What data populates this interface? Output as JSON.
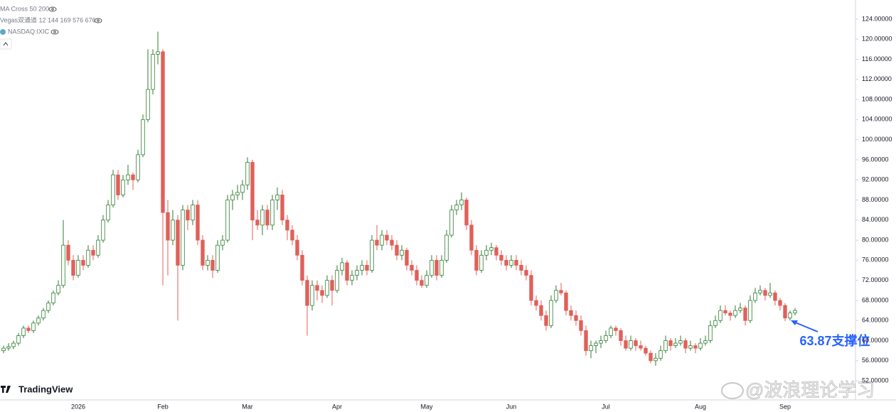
{
  "chart_data": {
    "type": "candlestick",
    "indicators": [
      "MA Cross 50 200",
      "Vegas双通道 12 144 169 576 676",
      "NASDAQ:IXIC"
    ],
    "logo": "TradingView",
    "watermark": "@波浪理论学习",
    "annotation": "63.87支撑位",
    "up_color": "#2e7d32",
    "down_color": "#e0605a",
    "ylim": [
      48.2,
      127.8
    ],
    "yticks": [
      {
        "value": 52,
        "label": "52.00000"
      },
      {
        "value": 56,
        "label": "56.00000"
      },
      {
        "value": 60,
        "label": "60.00000"
      },
      {
        "value": 64,
        "label": "64.00000"
      },
      {
        "value": 68,
        "label": "68.00000"
      },
      {
        "value": 72,
        "label": "72.00000"
      },
      {
        "value": 76,
        "label": "76.00000"
      },
      {
        "value": 80,
        "label": "80.00000"
      },
      {
        "value": 84,
        "label": "84.00000"
      },
      {
        "value": 88,
        "label": "88.00000"
      },
      {
        "value": 92,
        "label": "92.00000"
      },
      {
        "value": 96,
        "label": "96.00000"
      },
      {
        "value": 100,
        "label": "100.00000"
      },
      {
        "value": 104,
        "label": "104.00000"
      },
      {
        "value": 108,
        "label": "108.00000"
      },
      {
        "value": 112,
        "label": "112.00000"
      },
      {
        "value": 116,
        "label": "116.00000"
      },
      {
        "value": 120,
        "label": "120.00000"
      },
      {
        "value": 124,
        "label": "124.00000"
      }
    ],
    "categories": [
      null,
      null,
      null,
      null,
      null,
      null,
      null,
      null,
      null,
      null,
      null,
      null,
      null,
      null,
      null,
      "2026",
      null,
      null,
      null,
      null,
      null,
      null,
      null,
      null,
      null,
      null,
      null,
      null,
      null,
      null,
      null,
      null,
      "Feb",
      null,
      null,
      null,
      null,
      null,
      null,
      null,
      null,
      null,
      null,
      null,
      null,
      null,
      null,
      null,
      null,
      "Mar",
      null,
      null,
      null,
      null,
      null,
      null,
      null,
      null,
      null,
      null,
      null,
      null,
      null,
      null,
      null,
      null,
      null,
      "Apr",
      null,
      null,
      null,
      null,
      null,
      null,
      null,
      null,
      null,
      null,
      null,
      null,
      null,
      null,
      null,
      null,
      null,
      "May",
      null,
      null,
      null,
      null,
      null,
      null,
      null,
      null,
      null,
      null,
      null,
      null,
      null,
      null,
      null,
      null,
      "Jun",
      null,
      null,
      null,
      null,
      null,
      null,
      null,
      null,
      null,
      null,
      null,
      null,
      null,
      null,
      null,
      null,
      null,
      null,
      "Jul",
      null,
      null,
      null,
      null,
      null,
      null,
      null,
      null,
      null,
      null,
      null,
      null,
      null,
      null,
      null,
      null,
      null,
      null,
      "Aug",
      null,
      null,
      null,
      null,
      null,
      null,
      null,
      null,
      null,
      null,
      null,
      null,
      null,
      null,
      null,
      null,
      "Sep",
      null,
      null
    ],
    "candles": [
      [
        58,
        59,
        57.5,
        58.5
      ],
      [
        58.5,
        59.5,
        58,
        58.8
      ],
      [
        58.8,
        60,
        58.3,
        59.5
      ],
      [
        59.5,
        61.5,
        59,
        61
      ],
      [
        61,
        63,
        60.5,
        62.5
      ],
      [
        62.5,
        63,
        61.5,
        62
      ],
      [
        62,
        64,
        61.5,
        63.5
      ],
      [
        63.5,
        65,
        63,
        64.5
      ],
      [
        64.5,
        66.5,
        64,
        66
      ],
      [
        66,
        68,
        65.5,
        67.5
      ],
      [
        67.5,
        70,
        67,
        69.5
      ],
      [
        69.5,
        72,
        69,
        71
      ],
      [
        71,
        84,
        70.5,
        79
      ],
      [
        79,
        80,
        75,
        76
      ],
      [
        76,
        77,
        72,
        73
      ],
      [
        73,
        77,
        72.5,
        76
      ],
      [
        76,
        77,
        74,
        75
      ],
      [
        75,
        79,
        74.5,
        78
      ],
      [
        78,
        79,
        76,
        77
      ],
      [
        77,
        81,
        76.5,
        80
      ],
      [
        80,
        85,
        79.5,
        84
      ],
      [
        84,
        88,
        83.5,
        87
      ],
      [
        87,
        94,
        86.5,
        93
      ],
      [
        93,
        94,
        88,
        89
      ],
      [
        89,
        93,
        88.5,
        92
      ],
      [
        92,
        95,
        91,
        93
      ],
      [
        93,
        93.5,
        90,
        92
      ],
      [
        92,
        98,
        91.5,
        97
      ],
      [
        97,
        105,
        96.5,
        104
      ],
      [
        104,
        118,
        103.5,
        110
      ],
      [
        110,
        118,
        109,
        117
      ],
      [
        117,
        121.5,
        115,
        117.5
      ],
      [
        117.5,
        118,
        71,
        85.5
      ],
      [
        85.5,
        88,
        73,
        80
      ],
      [
        80,
        86,
        79,
        84
      ],
      [
        84,
        85,
        64,
        75
      ],
      [
        75,
        87,
        74,
        86
      ],
      [
        86,
        87,
        82,
        84
      ],
      [
        84,
        88,
        83,
        87
      ],
      [
        87,
        88,
        79,
        80
      ],
      [
        80,
        81,
        74,
        75
      ],
      [
        75,
        77,
        74,
        76
      ],
      [
        76,
        77,
        72.5,
        74
      ],
      [
        74,
        80,
        73.5,
        79
      ],
      [
        79,
        81,
        78,
        80
      ],
      [
        80,
        89,
        79.5,
        88
      ],
      [
        88,
        90,
        86,
        89
      ],
      [
        89,
        91,
        88,
        89.5
      ],
      [
        89.5,
        92,
        88,
        91
      ],
      [
        91,
        96.5,
        90,
        95.5
      ],
      [
        95.5,
        96,
        80,
        84
      ],
      [
        84,
        86,
        82,
        83
      ],
      [
        83,
        87,
        81,
        86
      ],
      [
        86,
        87,
        82,
        83
      ],
      [
        83,
        89,
        82,
        88
      ],
      [
        88,
        90.5,
        86,
        89
      ],
      [
        89,
        90,
        83,
        84
      ],
      [
        84,
        85,
        80,
        82
      ],
      [
        82,
        83,
        79,
        80
      ],
      [
        80,
        81,
        76,
        77
      ],
      [
        77,
        78,
        71,
        72
      ],
      [
        72,
        73,
        61,
        67
      ],
      [
        67,
        72,
        66,
        71
      ],
      [
        71,
        72,
        68,
        70
      ],
      [
        70,
        71,
        67.5,
        69
      ],
      [
        69,
        73,
        68.5,
        72
      ],
      [
        72,
        73,
        67,
        70
      ],
      [
        70,
        75,
        69.5,
        74
      ],
      [
        74,
        76.5,
        73,
        75.5
      ],
      [
        75.5,
        76,
        71,
        72
      ],
      [
        72,
        74,
        71,
        73
      ],
      [
        73,
        75,
        72,
        74
      ],
      [
        74,
        76,
        73,
        75
      ],
      [
        75,
        76,
        73,
        74
      ],
      [
        74,
        81,
        73.5,
        80
      ],
      [
        80,
        83,
        78,
        79
      ],
      [
        79,
        82,
        78,
        81
      ],
      [
        81,
        82,
        79,
        80
      ],
      [
        80,
        81,
        78,
        79
      ],
      [
        79,
        80,
        76,
        77
      ],
      [
        77,
        79,
        76,
        78
      ],
      [
        78,
        78.5,
        74,
        75
      ],
      [
        75,
        76,
        73,
        74
      ],
      [
        74,
        75,
        71,
        72
      ],
      [
        72,
        73,
        70.5,
        71
      ],
      [
        71,
        74,
        70.5,
        73
      ],
      [
        73,
        77,
        72.5,
        76
      ],
      [
        76,
        77,
        72,
        73
      ],
      [
        73,
        77,
        72.5,
        76
      ],
      [
        76,
        82,
        75.5,
        81
      ],
      [
        81,
        87,
        80.5,
        86
      ],
      [
        86,
        88,
        85,
        87
      ],
      [
        87,
        89.5,
        86,
        88
      ],
      [
        88,
        88.5,
        82,
        83
      ],
      [
        83,
        84,
        77,
        78
      ],
      [
        78,
        79,
        73,
        74
      ],
      [
        74,
        78,
        73.5,
        77
      ],
      [
        77,
        79,
        76,
        78
      ],
      [
        78,
        79.5,
        77,
        78.5
      ],
      [
        78.5,
        79,
        76,
        77
      ],
      [
        77,
        78,
        75,
        76
      ],
      [
        76,
        77,
        74,
        75
      ],
      [
        75,
        77,
        74.5,
        76
      ],
      [
        76,
        77,
        74,
        75
      ],
      [
        75,
        76,
        73,
        74
      ],
      [
        74,
        75,
        72,
        73
      ],
      [
        73,
        74,
        67,
        68
      ],
      [
        68,
        69,
        66,
        67
      ],
      [
        67,
        68,
        64,
        65
      ],
      [
        65,
        66,
        62,
        63
      ],
      [
        63,
        69,
        62.5,
        68
      ],
      [
        68,
        71,
        67.5,
        70
      ],
      [
        70,
        71.5,
        69,
        69.5
      ],
      [
        69.5,
        70,
        65,
        66
      ],
      [
        66,
        67,
        64,
        65
      ],
      [
        65,
        66,
        63,
        64
      ],
      [
        64,
        65,
        61,
        62
      ],
      [
        62,
        63,
        57,
        58
      ],
      [
        58,
        60,
        56.5,
        59
      ],
      [
        59,
        60,
        57.5,
        59.5
      ],
      [
        59.5,
        61,
        58.5,
        60
      ],
      [
        60,
        62,
        59.5,
        61
      ],
      [
        61,
        63,
        60.5,
        62.5
      ],
      [
        62.5,
        63,
        61,
        62
      ],
      [
        62,
        62.5,
        59,
        60
      ],
      [
        60,
        61,
        58,
        58.5
      ],
      [
        58.5,
        61,
        58,
        60
      ],
      [
        60,
        60.5,
        58,
        59
      ],
      [
        59,
        60,
        58,
        58.5
      ],
      [
        58.5,
        59,
        57,
        57.5
      ],
      [
        57.5,
        58,
        55.5,
        56
      ],
      [
        56,
        57.5,
        55,
        56.5
      ],
      [
        56.5,
        59,
        56,
        58
      ],
      [
        58,
        61,
        57.5,
        60
      ],
      [
        60,
        60.5,
        58,
        59
      ],
      [
        59,
        60.5,
        58.5,
        59.5
      ],
      [
        59.5,
        61,
        59,
        60
      ],
      [
        60,
        60.5,
        57.5,
        58.5
      ],
      [
        58.5,
        60,
        58,
        59
      ],
      [
        59,
        59.5,
        57.5,
        58.5
      ],
      [
        58.5,
        60.5,
        58,
        59.5
      ],
      [
        59.5,
        61,
        59,
        60
      ],
      [
        60,
        64,
        59.5,
        63
      ],
      [
        63,
        65,
        62.5,
        64
      ],
      [
        64,
        67,
        63.5,
        66
      ],
      [
        66,
        67,
        65,
        65.5
      ],
      [
        65.5,
        66,
        64,
        65
      ],
      [
        65,
        67,
        64.5,
        66
      ],
      [
        66,
        67.5,
        65.5,
        66.5
      ],
      [
        66.5,
        67,
        63,
        64
      ],
      [
        64,
        69,
        63.5,
        68
      ],
      [
        68,
        70.5,
        67.5,
        69.5
      ],
      [
        69.5,
        71,
        69,
        70
      ],
      [
        70,
        70.5,
        68,
        69
      ],
      [
        69,
        71.5,
        68.5,
        69.5
      ],
      [
        69.5,
        70,
        67,
        68
      ],
      [
        68,
        68.5,
        66,
        67
      ],
      [
        67,
        67.5,
        63.87,
        64.5
      ],
      [
        64.5,
        66,
        64,
        65.5
      ],
      [
        65.5,
        66.5,
        65,
        66
      ]
    ]
  }
}
